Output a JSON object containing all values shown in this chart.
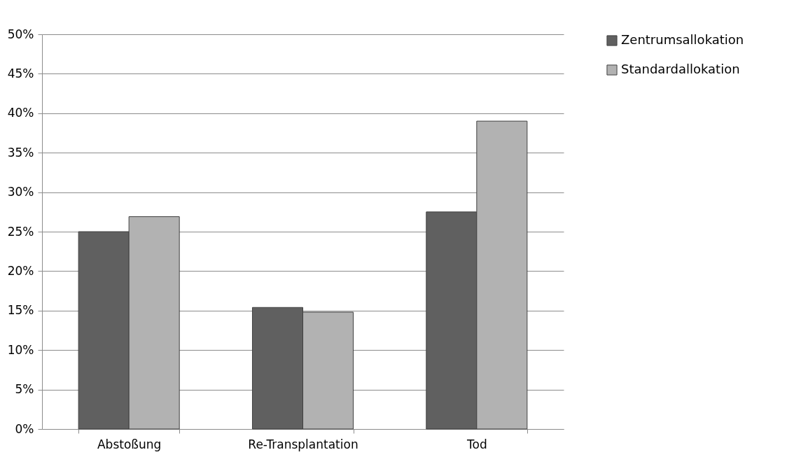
{
  "chart_data": {
    "type": "bar",
    "categories": [
      "Abstoßung",
      "Re-Transplantation",
      "Tod"
    ],
    "series": [
      {
        "name": "Zentrumsallokation",
        "color": "#606060",
        "values": [
          25,
          15.4,
          27.5
        ]
      },
      {
        "name": "Standardallokation",
        "color": "#b2b2b2",
        "values": [
          26.9,
          14.8,
          39.0
        ]
      }
    ],
    "ylim": [
      0,
      50
    ],
    "yticks": [
      {
        "value": 0,
        "label": "0%"
      },
      {
        "value": 5,
        "label": "5%"
      },
      {
        "value": 10,
        "label": "10%"
      },
      {
        "value": 15,
        "label": "15%"
      },
      {
        "value": 20,
        "label": "20%"
      },
      {
        "value": 25,
        "label": "25%"
      },
      {
        "value": 30,
        "label": "30%"
      },
      {
        "value": 35,
        "label": "35%"
      },
      {
        "value": 40,
        "label": "40%"
      },
      {
        "value": 45,
        "label": "45%"
      },
      {
        "value": 50,
        "label": "50%"
      }
    ],
    "grid": "y",
    "legend": "right"
  }
}
